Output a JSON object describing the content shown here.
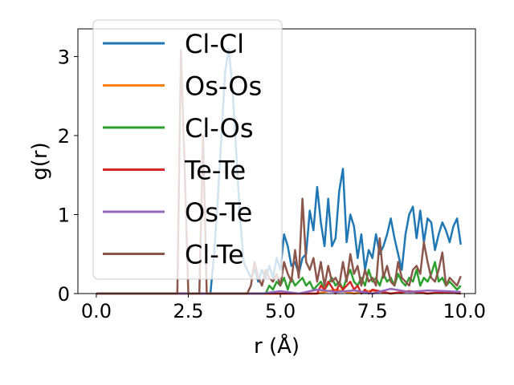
{
  "chart_data": {
    "type": "line",
    "xlabel": "r (Å)",
    "ylabel": "g(r)",
    "xlim": [
      -0.5,
      10.3
    ],
    "ylim": [
      0,
      3.35
    ],
    "xticks": [
      "0.0",
      "2.5",
      "5.0",
      "7.5",
      "10.0"
    ],
    "xtick_values": [
      0,
      2.5,
      5,
      7.5,
      10
    ],
    "yticks": [
      "0",
      "1",
      "2",
      "3"
    ],
    "ytick_values": [
      0,
      1,
      2,
      3
    ],
    "legend_position": "upper-left",
    "series": [
      {
        "name": "Cl-Cl",
        "color": "#1f77b4",
        "x": [
          0.0,
          3.1,
          3.2,
          3.3,
          3.4,
          3.5,
          3.6,
          3.7,
          3.8,
          3.9,
          4.0,
          4.1,
          4.2,
          4.3,
          4.4,
          4.5,
          4.6,
          4.7,
          4.8,
          4.9,
          5.0,
          5.1,
          5.2,
          5.3,
          5.4,
          5.5,
          5.6,
          5.7,
          5.8,
          5.9,
          6.0,
          6.1,
          6.2,
          6.3,
          6.4,
          6.5,
          6.6,
          6.7,
          6.8,
          6.9,
          7.0,
          7.1,
          7.2,
          7.3,
          7.4,
          7.5,
          7.6,
          7.7,
          7.8,
          7.9,
          8.0,
          8.1,
          8.2,
          8.3,
          8.4,
          8.5,
          8.6,
          8.7,
          8.8,
          8.9,
          9.0,
          9.1,
          9.2,
          9.3,
          9.4,
          9.5,
          9.6,
          9.7,
          9.8,
          9.9
        ],
        "y": [
          0.0,
          0.0,
          0.5,
          1.2,
          2.0,
          2.8,
          3.1,
          2.6,
          1.8,
          1.0,
          0.4,
          0.3,
          0.2,
          0.3,
          0.15,
          0.3,
          0.2,
          0.35,
          0.2,
          0.45,
          0.3,
          0.75,
          0.6,
          0.35,
          0.4,
          0.25,
          0.45,
          0.5,
          1.05,
          0.8,
          1.35,
          0.9,
          0.6,
          1.2,
          0.6,
          0.7,
          1.3,
          1.58,
          0.65,
          1.0,
          0.85,
          0.45,
          0.75,
          0.3,
          0.55,
          0.45,
          0.75,
          0.5,
          0.6,
          0.75,
          0.95,
          0.7,
          0.5,
          0.3,
          0.75,
          1.0,
          1.1,
          0.7,
          1.05,
          0.65,
          0.95,
          0.9,
          0.55,
          0.75,
          0.9,
          0.8,
          0.65,
          0.85,
          0.95,
          0.62
        ]
      },
      {
        "name": "Os-Os",
        "color": "#ff7f0e",
        "x": [
          0.0,
          5.5,
          6.0,
          6.5,
          7.0,
          7.5,
          8.0,
          8.5,
          9.0,
          9.5,
          9.9
        ],
        "y": [
          0.0,
          0.0,
          0.0,
          0.05,
          0.0,
          0.04,
          0.0,
          0.03,
          0.0,
          0.02,
          0.0
        ]
      },
      {
        "name": "Cl-Os",
        "color": "#2ca02c",
        "x": [
          0.0,
          4.6,
          4.7,
          4.8,
          4.9,
          5.0,
          5.1,
          5.2,
          5.3,
          5.4,
          5.5,
          5.6,
          5.7,
          5.8,
          5.9,
          6.0,
          6.1,
          6.2,
          6.3,
          6.4,
          6.5,
          6.6,
          6.7,
          6.8,
          6.9,
          7.0,
          7.1,
          7.2,
          7.3,
          7.4,
          7.5,
          7.6,
          7.7,
          7.8,
          7.9,
          8.0,
          8.1,
          8.2,
          8.3,
          8.4,
          8.5,
          8.6,
          8.7,
          8.8,
          8.9,
          9.0,
          9.1,
          9.2,
          9.3,
          9.4,
          9.5,
          9.6,
          9.7,
          9.8,
          9.9
        ],
        "y": [
          0.0,
          0.0,
          0.1,
          0.05,
          0.15,
          0.1,
          0.2,
          0.05,
          0.2,
          0.1,
          0.15,
          0.2,
          0.1,
          0.15,
          0.05,
          0.1,
          0.15,
          0.05,
          0.12,
          0.2,
          0.1,
          0.15,
          0.05,
          0.2,
          0.3,
          0.15,
          0.1,
          0.2,
          0.1,
          0.3,
          0.15,
          0.2,
          0.1,
          0.25,
          0.15,
          0.2,
          0.1,
          0.25,
          0.15,
          0.1,
          0.2,
          0.15,
          0.3,
          0.1,
          0.2,
          0.15,
          0.25,
          0.4,
          0.15,
          0.2,
          0.1,
          0.15,
          0.1,
          0.05,
          0.1
        ]
      },
      {
        "name": "Te-Te",
        "color": "#d62728",
        "x": [
          0.0,
          6.0,
          6.1,
          6.2,
          6.3,
          6.4,
          6.5,
          6.6,
          6.7,
          6.8,
          6.9,
          7.0,
          7.1,
          7.2,
          7.3,
          7.4,
          7.5,
          8.0,
          8.5,
          9.0,
          9.5,
          9.9
        ],
        "y": [
          0.0,
          0.0,
          0.1,
          0.05,
          0.15,
          0.08,
          0.0,
          0.12,
          0.05,
          0.1,
          0.15,
          0.05,
          0.1,
          0.0,
          0.05,
          0.0,
          0.05,
          0.0,
          0.03,
          0.0,
          0.02,
          0.0
        ]
      },
      {
        "name": "Os-Te",
        "color": "#9467bd",
        "x": [
          0.0,
          4.5,
          5.0,
          5.5,
          6.0,
          6.5,
          7.0,
          7.5,
          8.0,
          8.5,
          9.0,
          9.5,
          9.9
        ],
        "y": [
          0.0,
          0.0,
          0.03,
          0.0,
          0.05,
          0.02,
          0.04,
          0.0,
          0.06,
          0.02,
          0.04,
          0.03,
          0.02
        ]
      },
      {
        "name": "Cl-Te",
        "color": "#8c564b",
        "x": [
          0.0,
          2.2,
          2.3,
          2.4,
          2.5,
          2.8,
          2.9,
          3.0,
          4.1,
          4.2,
          4.3,
          4.4,
          4.5,
          4.6,
          4.7,
          4.8,
          4.9,
          5.0,
          5.1,
          5.2,
          5.3,
          5.4,
          5.5,
          5.6,
          5.7,
          5.8,
          5.9,
          6.0,
          6.1,
          6.2,
          6.3,
          6.4,
          6.5,
          6.6,
          6.7,
          6.8,
          6.9,
          7.0,
          7.1,
          7.2,
          7.3,
          7.4,
          7.5,
          7.6,
          7.7,
          7.8,
          7.9,
          8.0,
          8.1,
          8.2,
          8.3,
          8.4,
          8.5,
          8.6,
          8.7,
          8.8,
          8.9,
          9.0,
          9.1,
          9.2,
          9.3,
          9.4,
          9.5,
          9.6,
          9.7,
          9.8,
          9.9
        ],
        "y": [
          0.0,
          0.0,
          3.08,
          1.6,
          0.0,
          0.0,
          2.0,
          0.0,
          0.0,
          0.1,
          0.4,
          0.2,
          0.1,
          0.3,
          0.2,
          0.15,
          0.25,
          0.1,
          0.4,
          0.25,
          0.15,
          0.55,
          0.2,
          1.2,
          0.4,
          0.3,
          0.45,
          0.15,
          0.4,
          0.1,
          0.35,
          0.15,
          0.2,
          0.1,
          0.4,
          0.15,
          0.5,
          0.25,
          0.35,
          0.1,
          0.3,
          0.15,
          0.2,
          0.1,
          0.7,
          0.2,
          0.35,
          0.15,
          0.1,
          0.4,
          0.2,
          0.15,
          0.1,
          0.3,
          0.35,
          0.25,
          0.65,
          0.4,
          0.2,
          0.15,
          0.3,
          0.52,
          0.1,
          0.2,
          0.15,
          0.1,
          0.22
        ]
      }
    ]
  }
}
